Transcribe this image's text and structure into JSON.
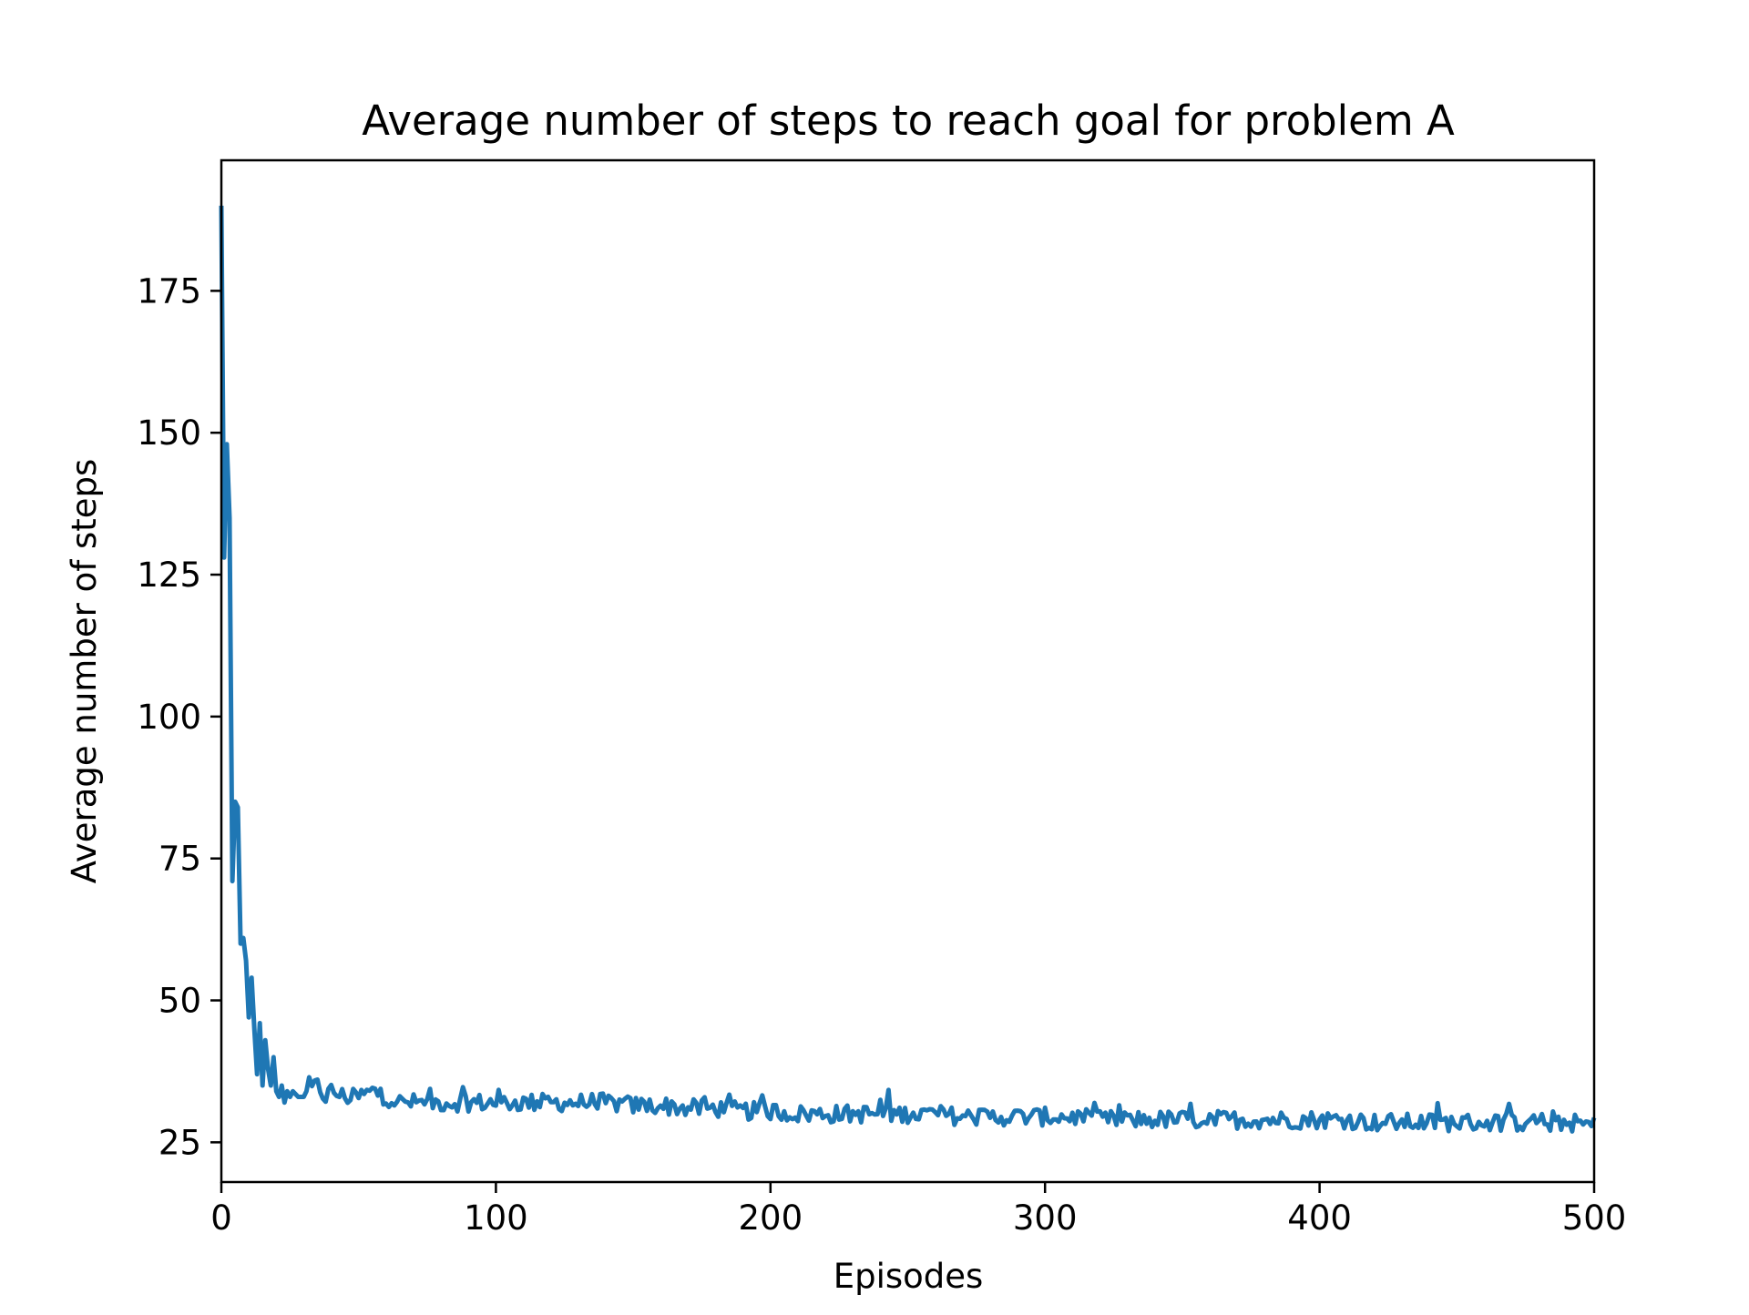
{
  "chart_data": {
    "type": "line",
    "title": "Average number of steps to reach goal for problem A",
    "xlabel": "Episodes",
    "ylabel": "Average number of steps",
    "xlim": [
      0,
      500
    ],
    "ylim": [
      18,
      198
    ],
    "xticks": [
      0,
      100,
      200,
      300,
      400,
      500
    ],
    "yticks": [
      25,
      50,
      75,
      100,
      125,
      150,
      175
    ],
    "grid": false,
    "legend": "none",
    "line_color": "#1f77b4",
    "series": [
      {
        "keypoints_x": [
          0,
          1,
          2,
          3,
          4,
          5,
          6,
          7,
          8,
          9,
          10,
          11,
          12,
          13,
          14,
          15,
          16,
          17,
          18,
          19,
          20,
          21,
          22,
          23,
          24,
          25,
          26,
          28,
          30,
          32,
          35,
          38,
          40,
          45,
          50,
          55,
          60,
          65,
          70,
          75,
          80,
          85,
          90,
          95,
          100,
          110,
          120,
          130,
          140,
          150,
          160,
          170,
          180,
          190,
          200,
          210,
          220,
          230,
          240,
          250,
          260,
          270,
          280,
          290,
          300,
          310,
          320,
          330,
          340,
          350,
          360,
          370,
          380,
          390,
          400,
          410,
          420,
          430,
          440,
          450,
          460,
          470,
          480,
          490,
          500
        ],
        "keypoints_y": [
          190,
          128,
          148,
          135,
          71,
          85,
          84,
          60,
          61,
          57,
          47,
          54,
          45,
          37,
          46,
          35,
          43,
          38,
          35,
          40,
          34,
          33,
          35,
          32,
          34,
          33,
          34,
          33,
          33,
          34,
          35,
          33,
          34,
          33,
          33,
          34,
          33,
          32,
          32,
          32,
          32,
          32,
          32,
          32,
          32,
          32,
          32,
          32,
          32,
          31.5,
          31.5,
          31,
          31,
          30.5,
          30.5,
          30,
          30,
          30,
          30,
          30,
          30,
          29.5,
          29.5,
          29.5,
          29.5,
          29.5,
          29,
          29,
          29,
          29,
          29,
          29,
          29,
          29,
          29,
          29,
          28.5,
          28.5,
          28.5,
          28.5,
          28.5,
          28.5,
          28.5,
          28.5,
          28
        ],
        "noise_amplitude_after_episode_30": 1.6
      }
    ]
  }
}
